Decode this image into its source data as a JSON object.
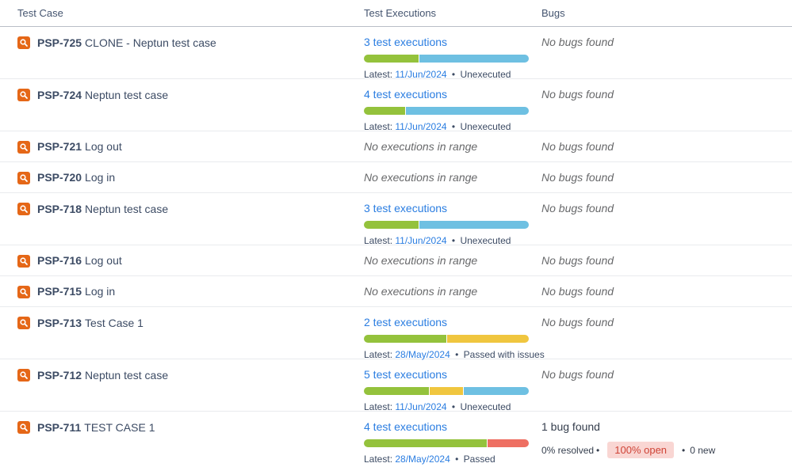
{
  "table": {
    "columns": [
      {
        "label": "Test Case"
      },
      {
        "label": "Test Executions"
      },
      {
        "label": "Bugs"
      }
    ],
    "rows": [
      {
        "key": "PSP-725",
        "summary": "CLONE - Neptun test case",
        "executions": {
          "link_text": "3 test executions",
          "latest_prefix": "Latest:",
          "latest_date": "11/Jun/2024",
          "separator": "•",
          "latest_status": "Unexecuted",
          "segments": [
            {
              "status": "passed",
              "percent": 33.4
            },
            {
              "status": "unexecuted",
              "percent": 66.6
            }
          ]
        },
        "bugs": {
          "none_text": "No bugs found"
        }
      },
      {
        "key": "PSP-724",
        "summary": "Neptun test case",
        "executions": {
          "link_text": "4 test executions",
          "latest_prefix": "Latest:",
          "latest_date": "11/Jun/2024",
          "separator": "•",
          "latest_status": "Unexecuted",
          "segments": [
            {
              "status": "passed",
              "percent": 25
            },
            {
              "status": "unexecuted",
              "percent": 75
            }
          ]
        },
        "bugs": {
          "none_text": "No bugs found"
        }
      },
      {
        "key": "PSP-721",
        "summary": "Log out",
        "no_executions_text": "No executions in range",
        "bugs": {
          "none_text": "No bugs found"
        }
      },
      {
        "key": "PSP-720",
        "summary": "Log in",
        "no_executions_text": "No executions in range",
        "bugs": {
          "none_text": "No bugs found"
        }
      },
      {
        "key": "PSP-718",
        "summary": "Neptun test case",
        "executions": {
          "link_text": "3 test executions",
          "latest_prefix": "Latest:",
          "latest_date": "11/Jun/2024",
          "separator": "•",
          "latest_status": "Unexecuted",
          "segments": [
            {
              "status": "passed",
              "percent": 33.4
            },
            {
              "status": "unexecuted",
              "percent": 66.6
            }
          ]
        },
        "bugs": {
          "none_text": "No bugs found"
        }
      },
      {
        "key": "PSP-716",
        "summary": "Log out",
        "no_executions_text": "No executions in range",
        "bugs": {
          "none_text": "No bugs found"
        }
      },
      {
        "key": "PSP-715",
        "summary": "Log in",
        "no_executions_text": "No executions in range",
        "bugs": {
          "none_text": "No bugs found"
        }
      },
      {
        "key": "PSP-713",
        "summary": "Test Case 1",
        "executions": {
          "link_text": "2 test executions",
          "latest_prefix": "Latest:",
          "latest_date": "28/May/2024",
          "separator": "•",
          "latest_status": "Passed with issues",
          "segments": [
            {
              "status": "passed",
              "percent": 50
            },
            {
              "status": "passed_with_issues",
              "percent": 50
            }
          ]
        },
        "bugs": {
          "none_text": "No bugs found"
        }
      },
      {
        "key": "PSP-712",
        "summary": "Neptun test case",
        "executions": {
          "link_text": "5 test executions",
          "latest_prefix": "Latest:",
          "latest_date": "11/Jun/2024",
          "separator": "•",
          "latest_status": "Unexecuted",
          "segments": [
            {
              "status": "passed",
              "percent": 40
            },
            {
              "status": "passed_with_issues",
              "percent": 20
            },
            {
              "status": "unexecuted",
              "percent": 40
            }
          ]
        },
        "bugs": {
          "none_text": "No bugs found"
        }
      },
      {
        "key": "PSP-711",
        "summary": "TEST CASE 1",
        "executions": {
          "link_text": "4 test executions",
          "latest_prefix": "Latest:",
          "latest_date": "28/May/2024",
          "separator": "•",
          "latest_status": "Passed",
          "segments": [
            {
              "status": "passed",
              "percent": 75
            },
            {
              "status": "failed",
              "percent": 25
            }
          ]
        },
        "bugs": {
          "found_text": "1 bug found",
          "resolved_text": "0% resolved",
          "separator": "•",
          "open_badge_text": "100% open",
          "new_text": "0 new"
        }
      }
    ]
  },
  "status_colors": {
    "passed": "#94c23c",
    "unexecuted": "#6ec0e2",
    "passed_with_issues": "#f0c63f",
    "failed": "#ee6f62"
  },
  "accent_colors": {
    "link_blue": "#2a7de1",
    "icon_orange": "#e56717",
    "badge_bg": "#f9d6d3",
    "badge_text": "#cf4437"
  }
}
